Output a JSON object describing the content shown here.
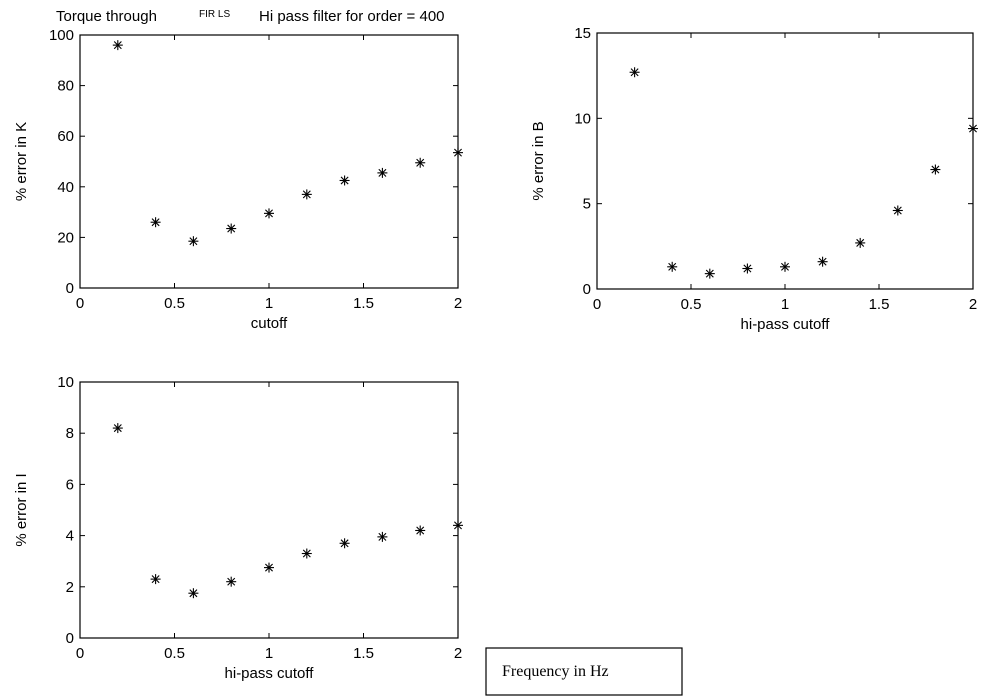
{
  "title": {
    "prefix": "Torque through",
    "filter": "FIR LS",
    "suffix": "Hi pass filter for order = 400"
  },
  "annotation": "Frequency in Hz",
  "chart_data": [
    {
      "type": "scatter",
      "marker": "*",
      "xlabel": "cutoff",
      "ylabel": "% error in K",
      "xlim": [
        0,
        2
      ],
      "ylim": [
        0,
        100
      ],
      "xticks": [
        "0",
        "0.5",
        "1",
        "1.5",
        "2"
      ],
      "yticks": [
        "0",
        "20",
        "40",
        "60",
        "80",
        "100"
      ],
      "x": [
        0.2,
        0.4,
        0.6,
        0.8,
        1.0,
        1.2,
        1.4,
        1.6,
        1.8,
        2.0
      ],
      "y": [
        96,
        26,
        18.5,
        23.5,
        29.5,
        37,
        42.5,
        45.5,
        49.5,
        53.5
      ]
    },
    {
      "type": "scatter",
      "marker": "*",
      "xlabel": "hi-pass cutoff",
      "ylabel": "% error in B",
      "xlim": [
        0,
        2
      ],
      "ylim": [
        0,
        15
      ],
      "xticks": [
        "0",
        "0.5",
        "1",
        "1.5",
        "2"
      ],
      "yticks": [
        "0",
        "5",
        "10",
        "15"
      ],
      "x": [
        0.2,
        0.4,
        0.6,
        0.8,
        1.0,
        1.2,
        1.4,
        1.6,
        1.8,
        2.0
      ],
      "y": [
        12.7,
        1.3,
        0.9,
        1.2,
        1.3,
        1.6,
        2.7,
        4.6,
        7.0,
        9.4
      ]
    },
    {
      "type": "scatter",
      "marker": "*",
      "xlabel": "hi-pass cutoff",
      "ylabel": "% error in I",
      "xlim": [
        0,
        2
      ],
      "ylim": [
        0,
        10
      ],
      "xticks": [
        "0",
        "0.5",
        "1",
        "1.5",
        "2"
      ],
      "yticks": [
        "0",
        "2",
        "4",
        "6",
        "8",
        "10"
      ],
      "x": [
        0.2,
        0.4,
        0.6,
        0.8,
        1.0,
        1.2,
        1.4,
        1.6,
        1.8,
        2.0
      ],
      "y": [
        8.2,
        2.3,
        1.75,
        2.2,
        2.75,
        3.3,
        3.7,
        3.95,
        4.2,
        4.4
      ]
    }
  ]
}
